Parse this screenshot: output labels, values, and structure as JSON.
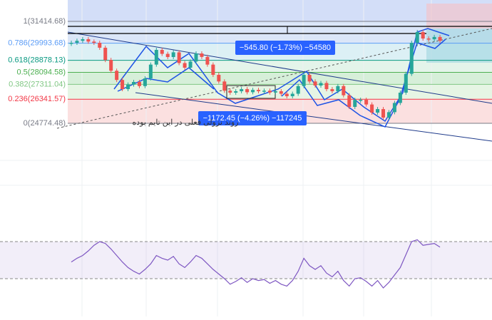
{
  "chart_data": {
    "type": "candlestick",
    "ylim": [
      23520,
      32810
    ],
    "fib_levels": [
      {
        "value": 31414.68,
        "label": "1(31414.68)",
        "color": "#787b86"
      },
      {
        "value": 29993.68,
        "label": "0.786(29993.68)",
        "color": "#5b9cf6"
      },
      {
        "value": 28878.13,
        "label": "0.618(28878.13)",
        "color": "#089981"
      },
      {
        "value": 28094.58,
        "label": "0.5(28094.58)",
        "color": "#4caf50"
      },
      {
        "value": 27311.04,
        "label": "0.382(27311.04)",
        "color": "#81c784"
      },
      {
        "value": 26341.57,
        "label": "0.236(26341.57)",
        "color": "#f23645"
      },
      {
        "value": 24774.48,
        "label": "0(24774.48)",
        "color": "#787b86"
      }
    ],
    "closes": [
      30022,
      30150,
      30254,
      30100,
      30020,
      29700,
      28900,
      28200,
      27600,
      27004,
      27300,
      27468,
      27200,
      27700,
      28600,
      29558,
      29300,
      29093,
      29400,
      28700,
      28397,
      28800,
      29325,
      29100,
      28600,
      27932,
      27500,
      26900,
      26771,
      26864,
      27000,
      26800,
      26950,
      26864,
      26900,
      26780,
      26864,
      26700,
      26539,
      26700,
      27200,
      27932,
      27500,
      27236,
      27400,
      27000,
      26864,
      27200,
      26600,
      25843,
      26300,
      26307,
      26000,
      25471,
      25700,
      25146,
      25500,
      26100,
      26771,
      28000,
      30022,
      30718,
      30300,
      30254,
      30400,
      30150
    ],
    "up_color": "#26a69a",
    "down_color": "#ef5350",
    "measurements": [
      "−545.80 (−1.73%) −54580",
      "−1172.45 (−4.26%) −117245"
    ],
    "annotation": "روند نزولی فعلی در این تایم بوده",
    "rsi": {
      "values": [
        48,
        52,
        55,
        60,
        66,
        70,
        68,
        62,
        55,
        48,
        42,
        38,
        35,
        40,
        46,
        55,
        52,
        50,
        54,
        46,
        42,
        48,
        55,
        52,
        46,
        40,
        35,
        30,
        24,
        27,
        31,
        26,
        30,
        28,
        29,
        25,
        28,
        24,
        22,
        28,
        38,
        52,
        44,
        40,
        44,
        36,
        32,
        38,
        28,
        22,
        30,
        31,
        27,
        22,
        28,
        20,
        26,
        34,
        42,
        56,
        70,
        72,
        66,
        67,
        68,
        64
      ],
      "ylim": [
        0,
        100
      ],
      "bands": [
        30,
        70
      ],
      "color": "#7e57c2"
    }
  }
}
